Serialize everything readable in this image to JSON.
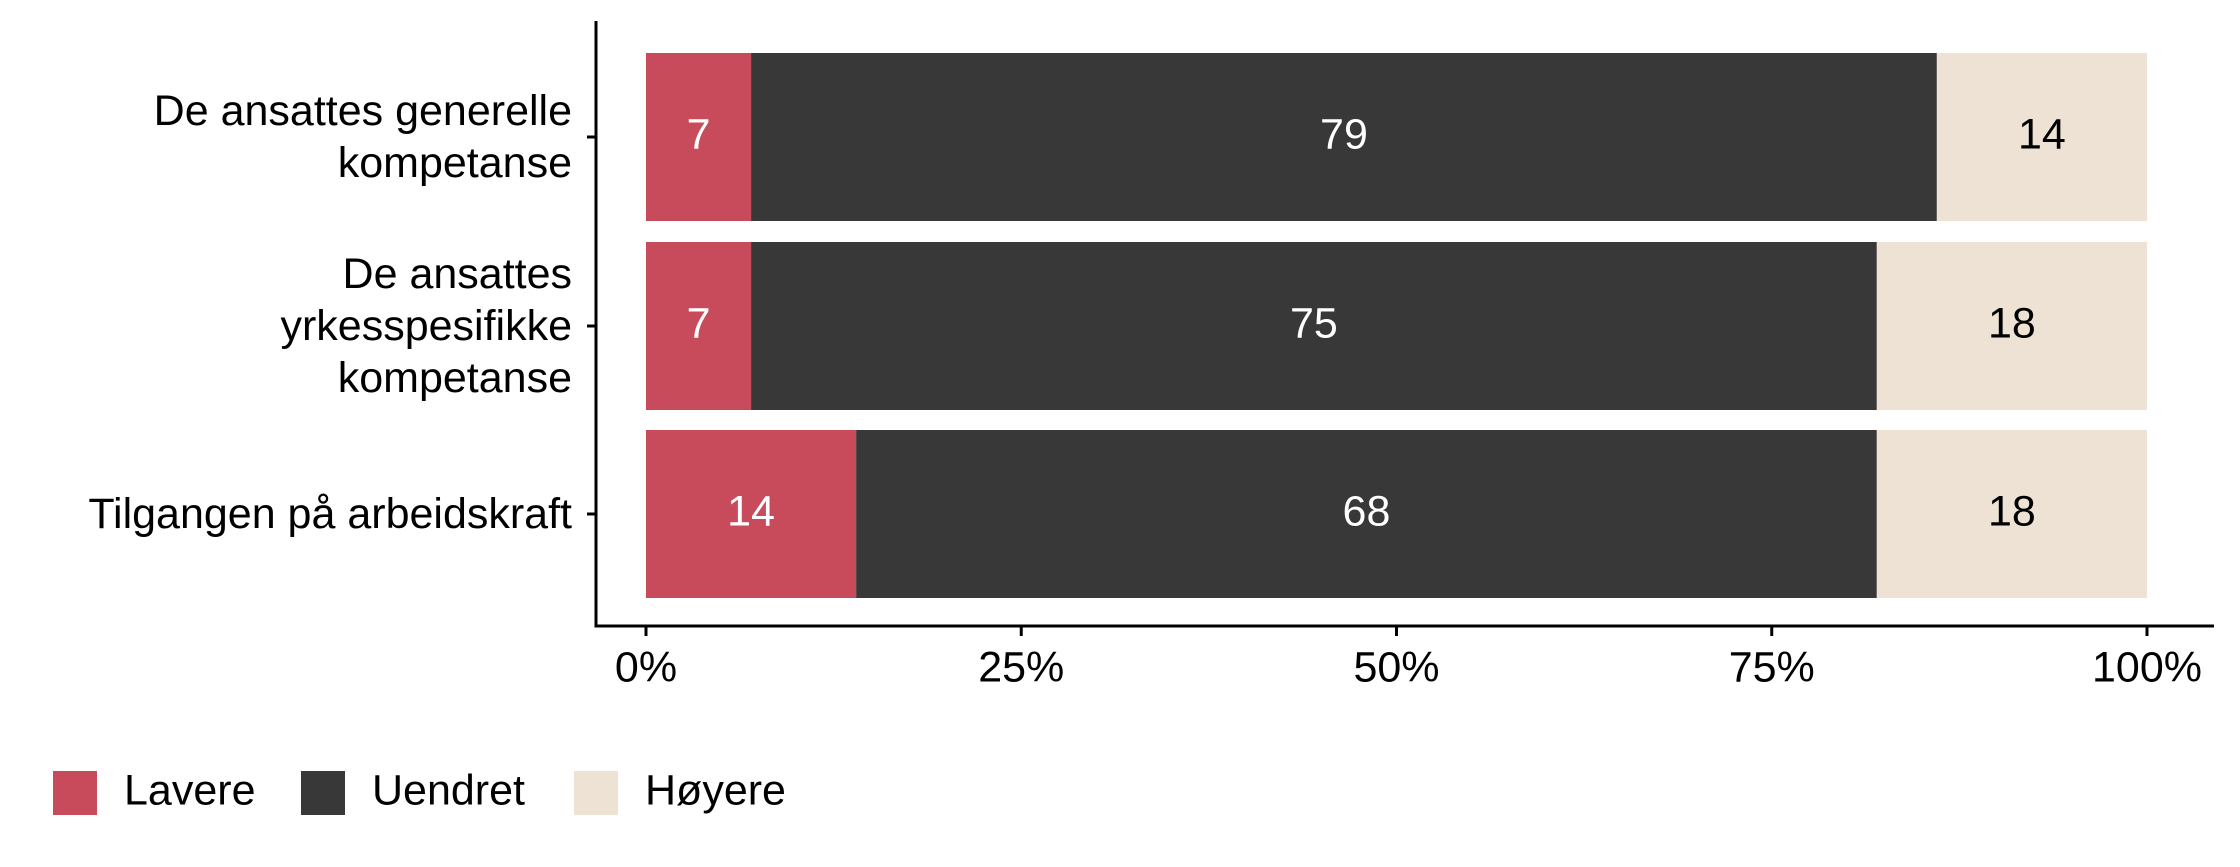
{
  "chart_data": {
    "type": "stacked-bar-horizontal",
    "categories": [
      "De ansattes generelle\nkompetanse",
      "De ansattes\nyrkesspesifikke\nkompetanse",
      "Tilgangen på arbeidskraft"
    ],
    "series": [
      {
        "name": "Lavere",
        "color": "#c84b5b",
        "label_color": "#ffffff",
        "values": [
          7,
          7,
          14
        ]
      },
      {
        "name": "Uendret",
        "color": "#383838",
        "label_color": "#ffffff",
        "values": [
          79,
          75,
          68
        ]
      },
      {
        "name": "Høyere",
        "color": "#ede2d3",
        "label_color": "#000000",
        "values": [
          14,
          18,
          18
        ]
      }
    ],
    "xlim": [
      0,
      100
    ],
    "xticks": [
      {
        "value": 0,
        "label": "0%"
      },
      {
        "value": 25,
        "label": "25%"
      },
      {
        "value": 50,
        "label": "50%"
      },
      {
        "value": 75,
        "label": "75%"
      },
      {
        "value": 100,
        "label": "100%"
      }
    ],
    "legend": "bottom-left"
  }
}
